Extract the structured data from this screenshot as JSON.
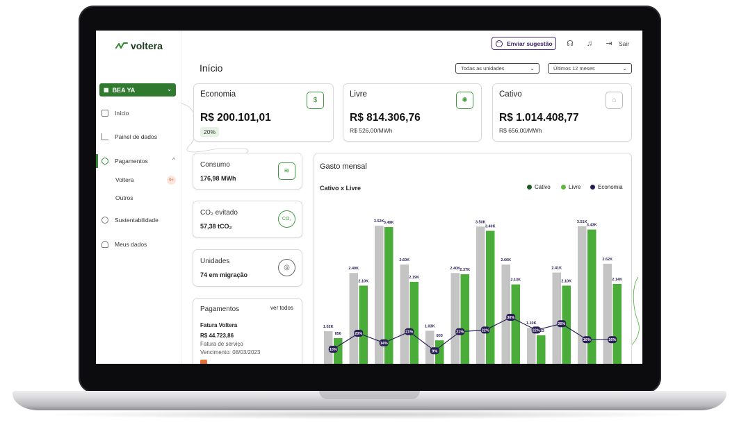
{
  "app": {
    "brand": "voltera"
  },
  "sidebar": {
    "client": "BEA YA",
    "items": [
      {
        "label": "Início",
        "icon": "home-icon"
      },
      {
        "label": "Painel de dados",
        "icon": "chart-icon"
      },
      {
        "label": "Pagamentos",
        "icon": "money-icon",
        "subitems": [
          "Voltera",
          "Outros"
        ],
        "badge": "9+"
      },
      {
        "label": "Sustentabilidade",
        "icon": "leaf-icon"
      },
      {
        "label": "Meus dados",
        "icon": "user-icon"
      }
    ]
  },
  "header": {
    "suggest_label": "Enviar sugestão",
    "logout_label": "Sair"
  },
  "page": {
    "title": "Início",
    "filters": {
      "units": "Todas as unidades",
      "period": "Últimos 12 meses"
    }
  },
  "cards": {
    "economia": {
      "title": "Economia",
      "value": "R$ 200.101,01",
      "percent": "20%"
    },
    "livre": {
      "title": "Livre",
      "value": "R$ 814.306,76",
      "sub": "R$ 526,00/MWh"
    },
    "cativo": {
      "title": "Cativo",
      "value": "R$ 1.014.408,77",
      "sub": "R$ 656,00/MWh"
    },
    "consumo": {
      "title": "Consumo",
      "value": "176,98 MWh"
    },
    "co2": {
      "title": "CO₂ evitado",
      "value": "57,38 tCO₂"
    },
    "unidades": {
      "title": "Unidades",
      "value": "74 em migração"
    },
    "pagamentos": {
      "title": "Pagamentos",
      "link": "ver todos",
      "invoice_title": "Fatura Voltera",
      "amount": "R$ 44.723,86",
      "type": "Fatura de serviço",
      "due": "Vencimento:  08/03/2023"
    }
  },
  "chart_data": {
    "type": "bar",
    "title": "Gasto mensal",
    "subtitle": "Cativo x Livre",
    "legend_position": "top-right",
    "series": [
      {
        "name": "Cativo",
        "color": "#c4c4c4",
        "values": [
          1.02,
          2.4,
          3.52,
          2.6,
          1.03,
          2.4,
          3.5,
          2.6,
          1.1,
          2.41,
          3.51,
          2.62
        ],
        "labels": [
          "1.02K",
          "2.40K",
          "3.52K",
          "2.60K",
          "1.03K",
          "2.40K",
          "3.50K",
          "2.60K",
          "1.10K",
          "2.41K",
          "3.51K",
          "2.62K"
        ]
      },
      {
        "name": "Livre",
        "color": "#4aad3a",
        "values": [
          0.856,
          2.1,
          3.49,
          2.19,
          0.803,
          2.37,
          3.4,
          2.13,
          0.923,
          2.1,
          3.43,
          2.14
        ],
        "labels": [
          "856",
          "2.10K",
          "3.49K",
          "2.19K",
          "803",
          "2.37K",
          "3.40K",
          "2.13K",
          "923",
          "2.10K",
          "3.43K",
          "2.14K"
        ]
      },
      {
        "name": "Economia",
        "color": "#2a1f55",
        "values": [
          10,
          20,
          14,
          21,
          9,
          21,
          22,
          30,
          22,
          26,
          16,
          16
        ],
        "labels": [
          "10%",
          "20%",
          "14%",
          "21%",
          "9%",
          "21%",
          "22%",
          "30%",
          "22%",
          "26%",
          "16%",
          "16%"
        ]
      }
    ],
    "legend_colors": {
      "Cativo": "#1f5a25",
      "Livre": "#5cb83c",
      "Economia": "#2a1f55"
    },
    "ylim": [
      0,
      4
    ]
  }
}
